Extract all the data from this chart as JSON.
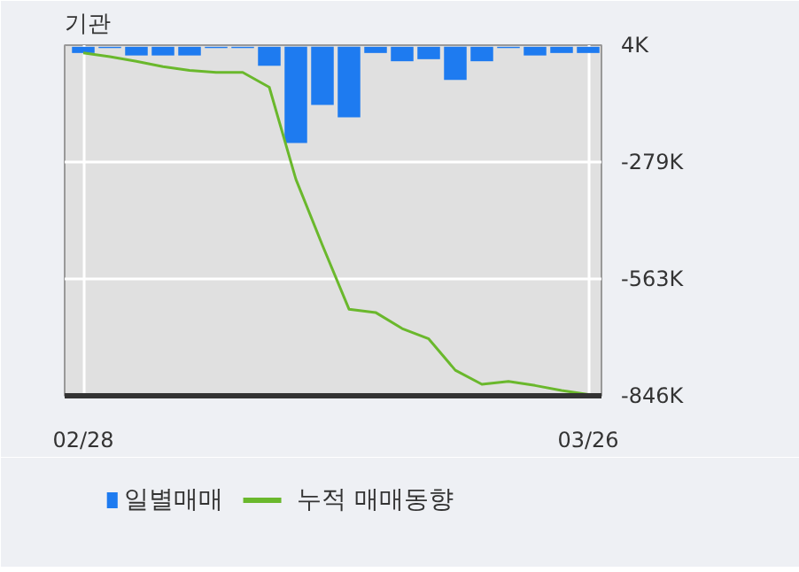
{
  "chart_data": {
    "type": "bar",
    "title": "기관",
    "categories": [
      "02/28",
      null,
      null,
      null,
      null,
      null,
      null,
      null,
      null,
      null,
      null,
      null,
      null,
      null,
      null,
      null,
      null,
      null,
      null,
      "03/26"
    ],
    "series": [
      {
        "name": "일별매매",
        "color": "#1e7bf0",
        "values": [
          -15000,
          -3000,
          -21000,
          -21000,
          -21000,
          -3000,
          -3000,
          -46000,
          -233000,
          -141000,
          -171000,
          -15000,
          -35000,
          -30000,
          -80000,
          -35000,
          -3000,
          -21000,
          -15000,
          -15000
        ]
      },
      {
        "name": "누적 매매동향",
        "type": "line",
        "color": "#6ab82c",
        "values": [
          -15000,
          -24000,
          -35000,
          -48000,
          -57000,
          -62000,
          -62000,
          -98000,
          -321000,
          -481000,
          -636000,
          -644000,
          -683000,
          -708000,
          -784000,
          -818000,
          -811000,
          -821000,
          -833000,
          -843000
        ]
      }
    ],
    "ylim": [
      -846000,
      4000
    ],
    "yticks": [
      {
        "value": 4000,
        "label": "4K"
      },
      {
        "value": -279000,
        "label": "-279K"
      },
      {
        "value": -563000,
        "label": "-563K"
      },
      {
        "value": -846000,
        "label": "-846K"
      }
    ],
    "grid": true,
    "legend": "bottom"
  }
}
